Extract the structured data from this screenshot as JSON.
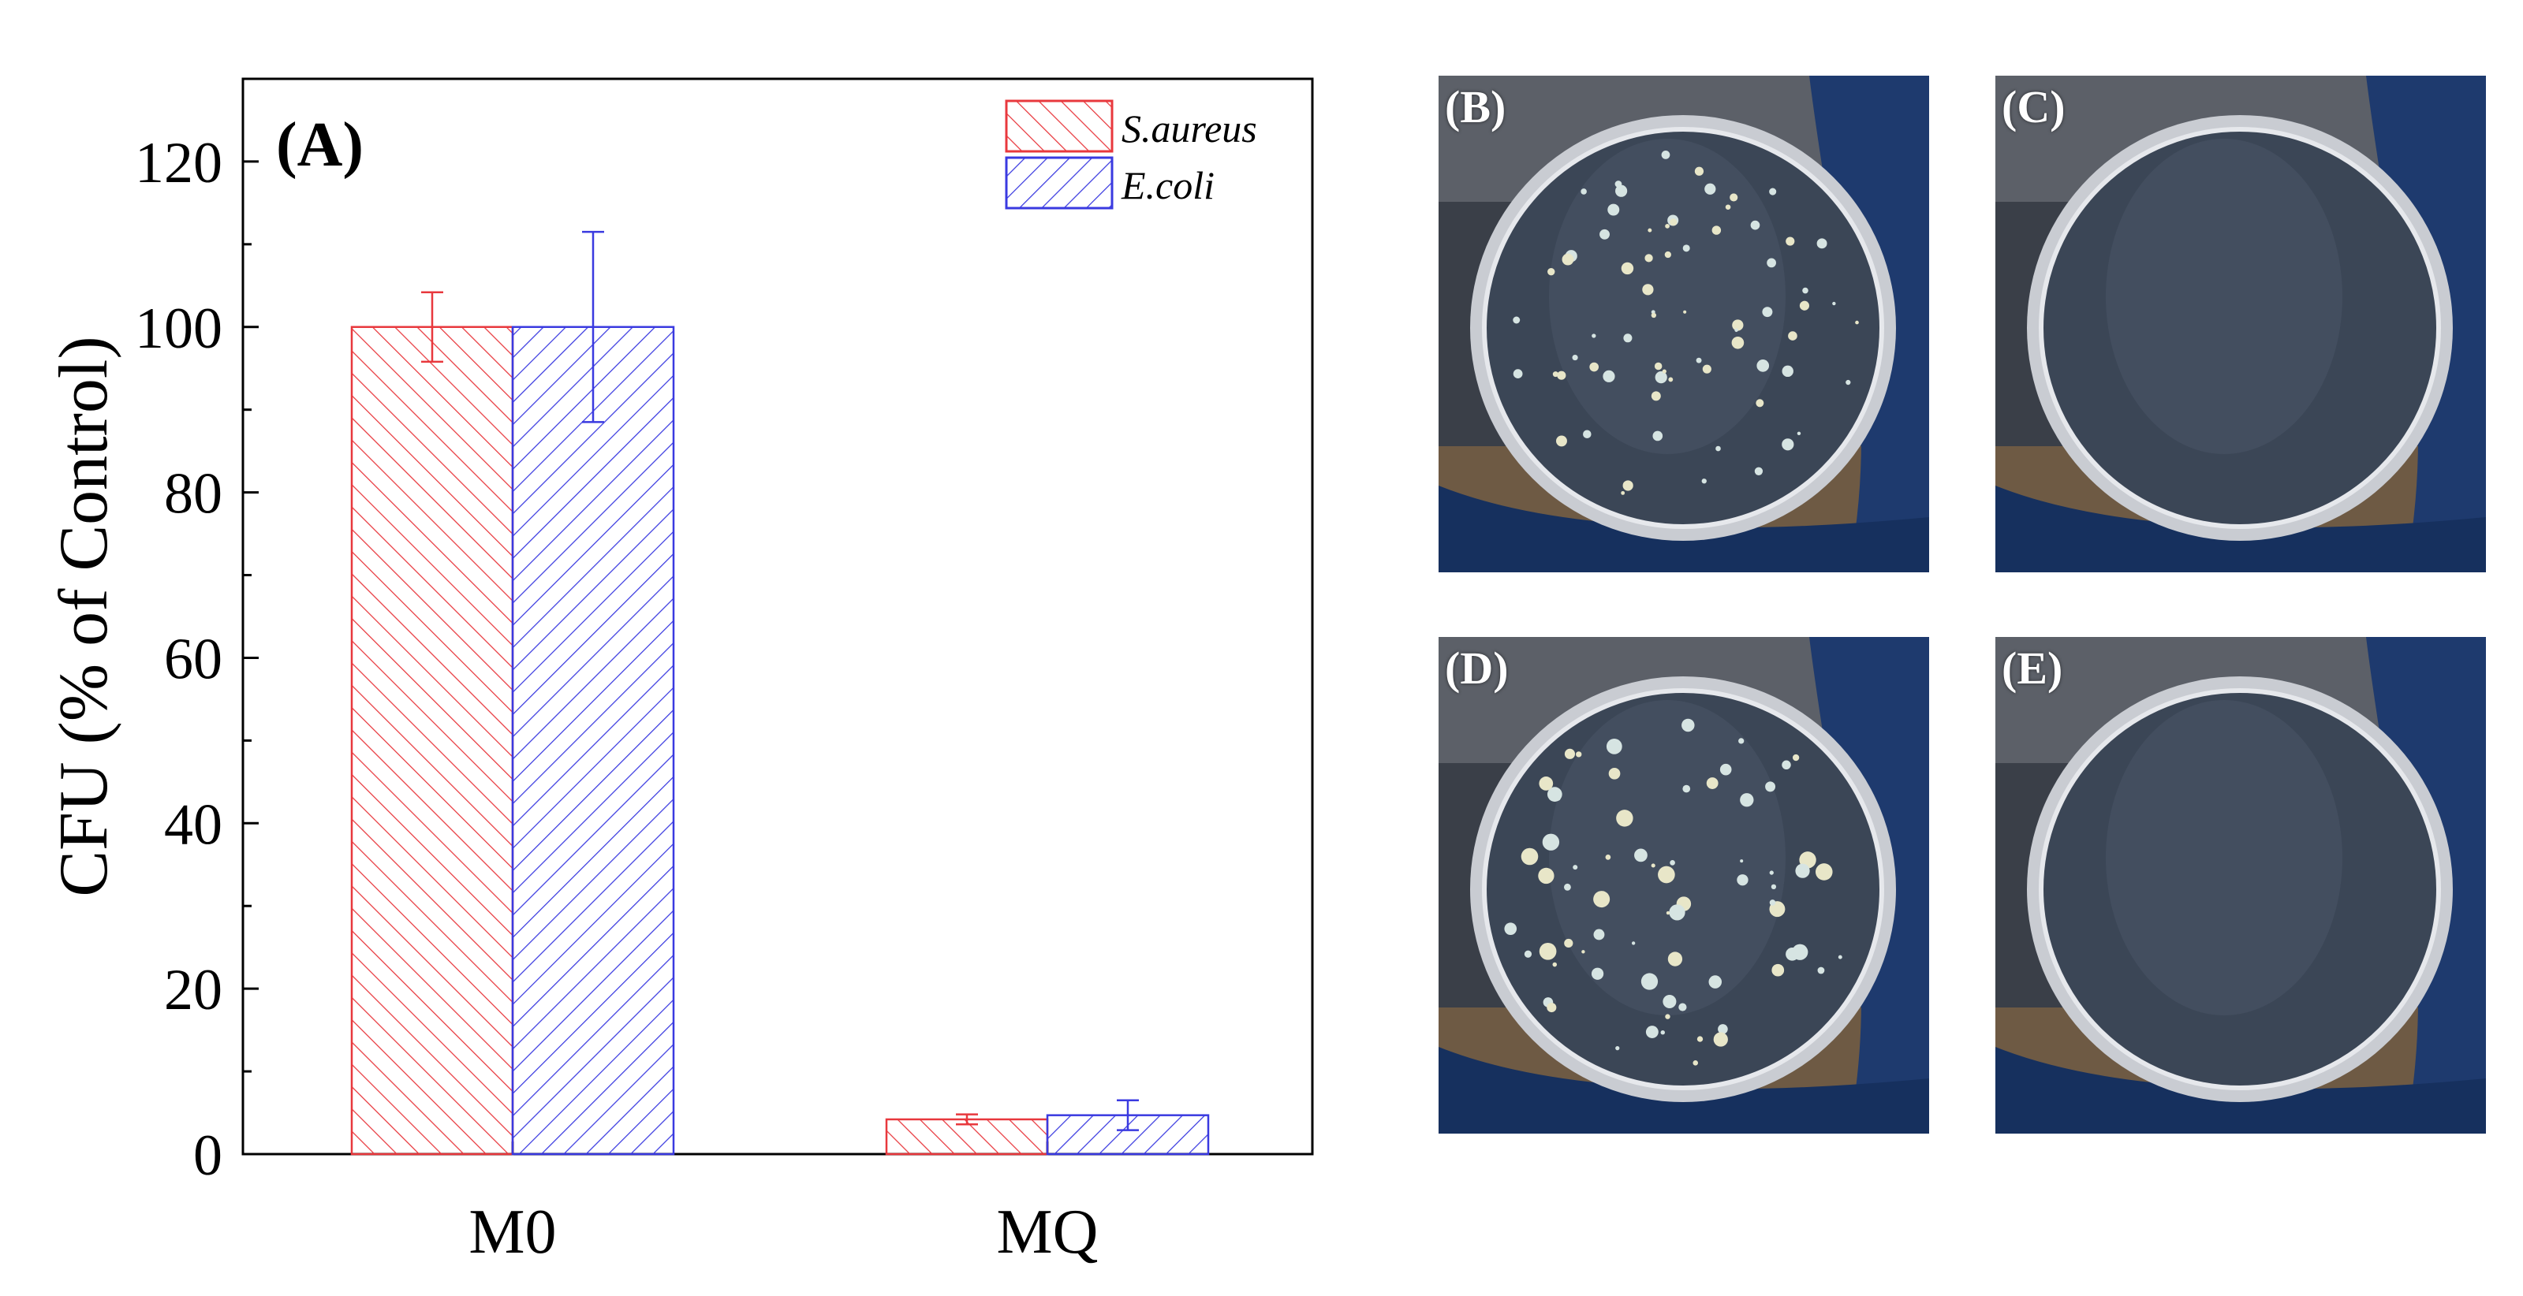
{
  "chart_data": {
    "type": "bar",
    "panel_label": "(A)",
    "ylabel": "CFU (% of Control)",
    "xlabel": "",
    "ylim": [
      0,
      130
    ],
    "yticks": [
      0,
      20,
      40,
      60,
      80,
      100,
      120
    ],
    "categories": [
      "M0",
      "MQ"
    ],
    "series": [
      {
        "name": "S.aureus",
        "color": "#e8383d",
        "hatch": "forward",
        "values": [
          100,
          4.2
        ],
        "errors": [
          4.2,
          0.6
        ]
      },
      {
        "name": "E.coli",
        "color": "#3a3ae0",
        "hatch": "backward",
        "values": [
          100,
          4.7
        ],
        "errors": [
          11.5,
          1.8
        ]
      }
    ],
    "legend_position": "top-right"
  },
  "photos": [
    {
      "label": "(B)",
      "colonies": "many"
    },
    {
      "label": "(C)",
      "colonies": "none"
    },
    {
      "label": "(D)",
      "colonies": "many"
    },
    {
      "label": "(E)",
      "colonies": "none"
    }
  ]
}
